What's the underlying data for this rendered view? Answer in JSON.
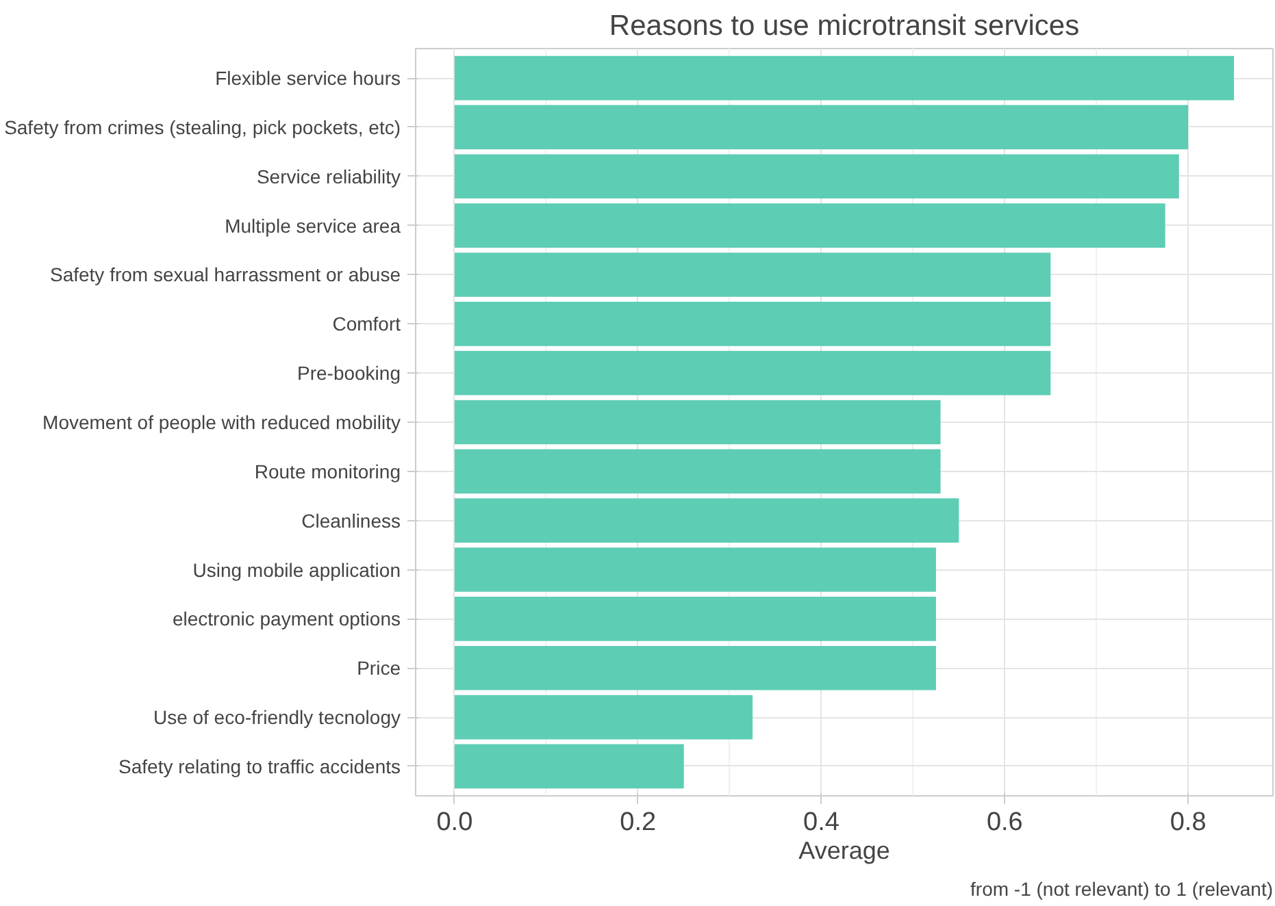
{
  "chart_data": {
    "type": "bar",
    "orientation": "horizontal",
    "title": "Reasons to use microtransit services",
    "xlabel": "Average",
    "categories": [
      "Flexible service hours",
      "Safety from crimes (stealing, pick pockets, etc)",
      "Service reliability",
      "Multiple service area",
      "Safety from sexual harrassment or abuse",
      "Comfort",
      "Pre-booking",
      "Movement of people with reduced mobility",
      "Route monitoring",
      "Cleanliness",
      "Using mobile application",
      "electronic payment options",
      "Price",
      "Use of eco-friendly tecnology",
      "Safety relating to traffic accidents"
    ],
    "values": [
      0.85,
      0.8,
      0.79,
      0.775,
      0.65,
      0.65,
      0.65,
      0.53,
      0.53,
      0.55,
      0.525,
      0.525,
      0.525,
      0.325,
      0.25
    ],
    "color": "#5dcdb4",
    "xlim": [
      -0.0425,
      0.8925
    ],
    "xticks": [
      {
        "value": 0,
        "label": "0.0"
      },
      {
        "value": 0.2,
        "label": "0.2"
      },
      {
        "value": 0.4,
        "label": "0.4"
      },
      {
        "value": 0.6,
        "label": "0.6"
      },
      {
        "value": 0.8,
        "label": "0.8"
      }
    ],
    "grid": true,
    "annotations": [
      "from -1 (not relevant) to 1 (relevant)"
    ]
  }
}
